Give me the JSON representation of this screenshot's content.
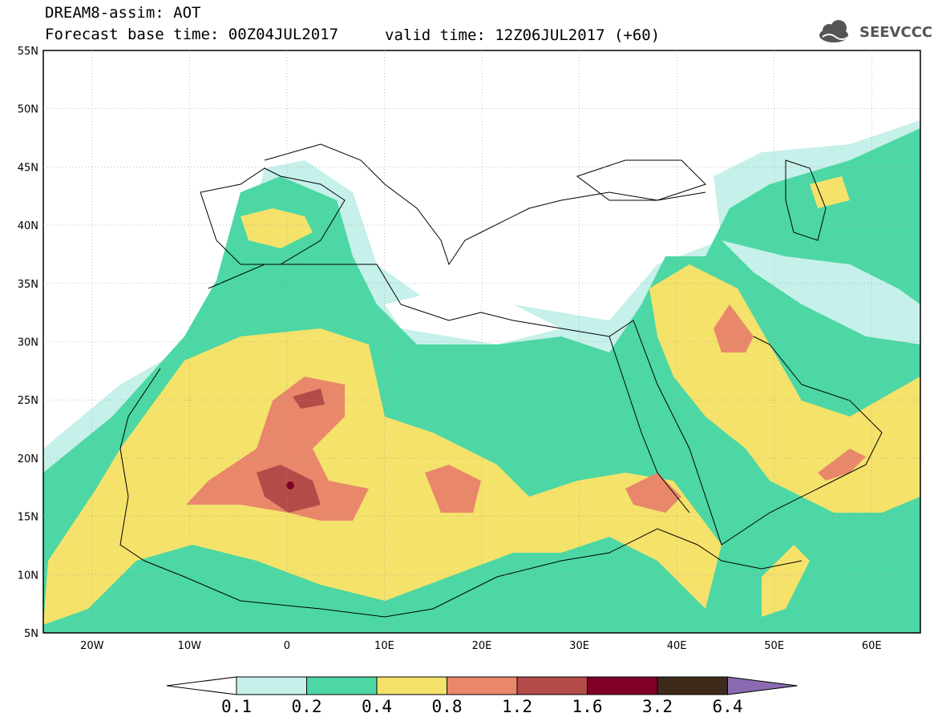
{
  "header": {
    "line1": "DREAM8-assim: AOT",
    "line2": "Forecast base time: 00Z04JUL2017",
    "valid": "valid time: 12Z06JUL2017 (+60)",
    "logo_text": "SEEVCCC"
  },
  "map": {
    "lon_range": [
      -25,
      65
    ],
    "lat_range": [
      5,
      55
    ],
    "lat_labels": [
      "55N",
      "50N",
      "45N",
      "40N",
      "35N",
      "30N",
      "25N",
      "20N",
      "15N",
      "10N",
      "5N"
    ],
    "lon_labels": [
      "20W",
      "10W",
      "0",
      "10E",
      "20E",
      "30E",
      "40E",
      "50E",
      "60E"
    ]
  },
  "colorbar": {
    "labels": [
      "0.1",
      "0.2",
      "0.4",
      "0.8",
      "1.2",
      "1.6",
      "3.2",
      "6.4"
    ],
    "colors": [
      "#ffffff",
      "#c6f0ea",
      "#4cd7a4",
      "#f4e26b",
      "#e9876a",
      "#b34c48",
      "#800028",
      "#3d2a1a",
      "#8a6ab0"
    ]
  }
}
